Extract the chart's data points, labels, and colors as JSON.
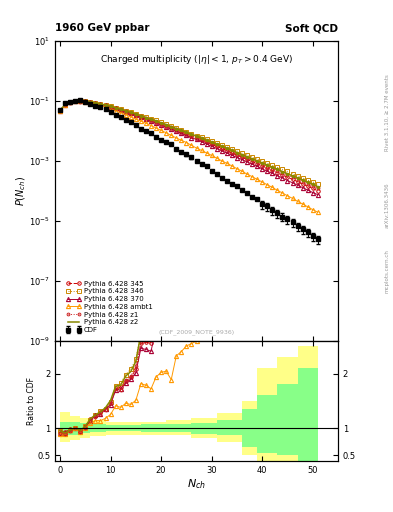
{
  "title_left": "1960 GeV ppbar",
  "title_right": "Soft QCD",
  "main_title": "Charged multiplicity (|\\eta| < 1, p_{T} > 0.4 GeV)",
  "ylabel_main": "P(N_{ch})",
  "ylabel_ratio": "Ratio to CDF",
  "xlabel": "N_{ch}",
  "note": "(CDF_2009_NOTE_9936)",
  "legend_entries": [
    "CDF",
    "Pythia 6.428 345",
    "Pythia 6.428 346",
    "Pythia 6.428 370",
    "Pythia 6.428 ambt1",
    "Pythia 6.428 z1",
    "Pythia 6.428 z2"
  ],
  "main_ylim_log": [
    -9,
    1
  ],
  "ratio_ylim": [
    0.4,
    2.6
  ],
  "xmin": -1,
  "xmax": 55,
  "colors": {
    "cdf": "#000000",
    "p345": "#cc0000",
    "p346": "#cc8800",
    "p370": "#aa0033",
    "pambt1": "#ff9900",
    "pz1": "#cc2222",
    "pz2": "#888800"
  }
}
